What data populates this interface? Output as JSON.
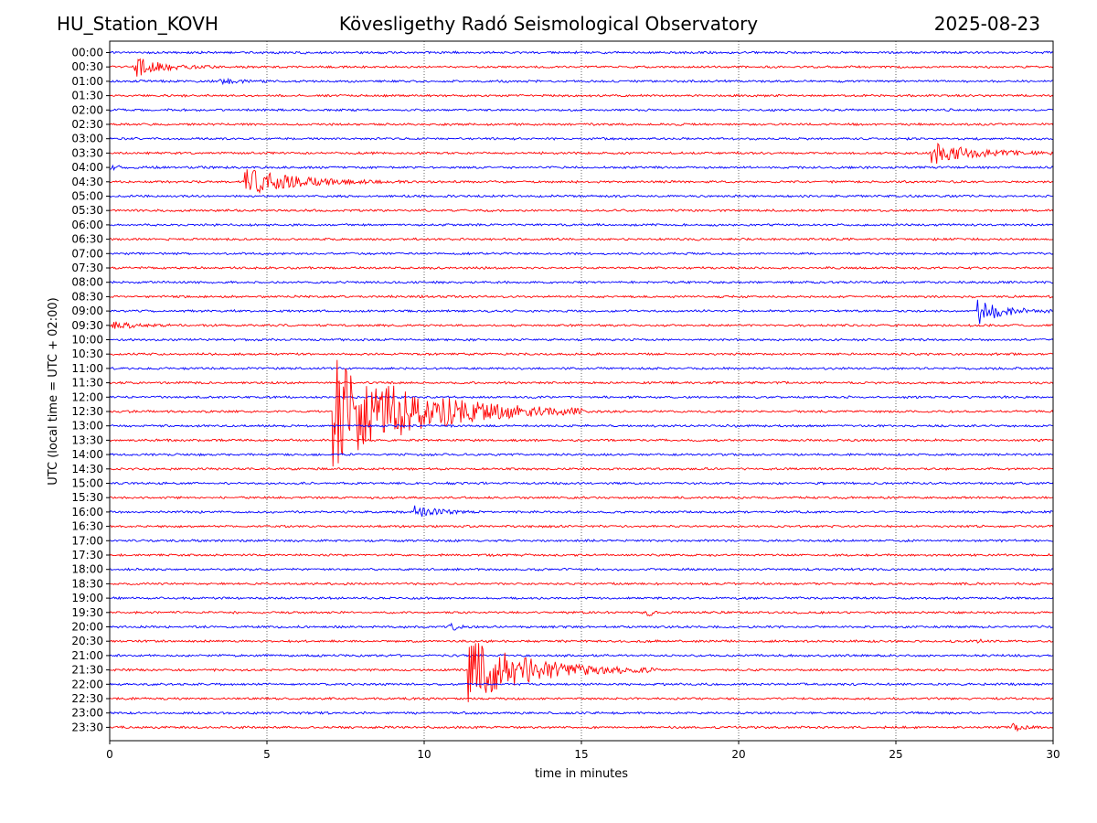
{
  "header": {
    "station": "HU_Station_KOVH",
    "observatory": "Kövesligethy Radó Seismological Observatory",
    "date": "2025-08-23"
  },
  "chart_data": {
    "type": "line",
    "title": "Kövesligethy Radó Seismological Observatory",
    "xlabel": "time in minutes",
    "ylabel": "UTC (local time = UTC + 02:00)",
    "xlim": [
      0,
      30
    ],
    "x_ticks": [
      0,
      5,
      10,
      15,
      20,
      25,
      30
    ],
    "grid": "vertical dotted at major x ticks",
    "colors": {
      "even": "#0000ff",
      "odd": "#ff0000"
    },
    "rows": [
      "00:00",
      "00:30",
      "01:00",
      "01:30",
      "02:00",
      "02:30",
      "03:00",
      "03:30",
      "04:00",
      "04:30",
      "05:00",
      "05:30",
      "06:00",
      "06:30",
      "07:00",
      "07:30",
      "08:00",
      "08:30",
      "09:00",
      "09:30",
      "10:00",
      "10:30",
      "11:00",
      "11:30",
      "12:00",
      "12:30",
      "13:00",
      "13:30",
      "14:00",
      "14:30",
      "15:00",
      "15:30",
      "16:00",
      "16:30",
      "17:00",
      "17:30",
      "18:00",
      "18:30",
      "19:00",
      "19:30",
      "20:00",
      "20:30",
      "21:00",
      "21:30",
      "22:00",
      "22:30",
      "23:00",
      "23:30"
    ],
    "events": [
      {
        "row": 1,
        "start_min": 0.8,
        "duration_min": 2.5,
        "amplitude_rows": 0.7
      },
      {
        "row": 2,
        "start_min": 3.5,
        "duration_min": 1.5,
        "amplitude_rows": 0.25
      },
      {
        "row": 7,
        "start_min": 26.1,
        "duration_min": 4.0,
        "amplitude_rows": 0.8
      },
      {
        "row": 8,
        "start_min": 0.0,
        "duration_min": 1.8,
        "amplitude_rows": 0.12
      },
      {
        "row": 9,
        "start_min": 4.3,
        "duration_min": 5.0,
        "amplitude_rows": 0.9
      },
      {
        "row": 18,
        "start_min": 27.6,
        "duration_min": 2.5,
        "amplitude_rows": 0.9
      },
      {
        "row": 19,
        "start_min": 0.0,
        "duration_min": 2.5,
        "amplitude_rows": 0.25
      },
      {
        "row": 25,
        "start_min": 7.1,
        "duration_min": 8.0,
        "amplitude_rows": 3.9
      },
      {
        "row": 32,
        "start_min": 9.7,
        "duration_min": 2.0,
        "amplitude_rows": 0.45
      },
      {
        "row": 39,
        "start_min": 17.1,
        "duration_min": 0.4,
        "amplitude_rows": 0.4
      },
      {
        "row": 40,
        "start_min": 10.8,
        "duration_min": 1.2,
        "amplitude_rows": 0.25
      },
      {
        "row": 41,
        "start_min": 27.6,
        "duration_min": 0.4,
        "amplitude_rows": 0.35
      },
      {
        "row": 43,
        "start_min": 11.4,
        "duration_min": 6.0,
        "amplitude_rows": 2.2
      },
      {
        "row": 47,
        "start_min": 28.7,
        "duration_min": 1.0,
        "amplitude_rows": 0.3
      }
    ]
  }
}
